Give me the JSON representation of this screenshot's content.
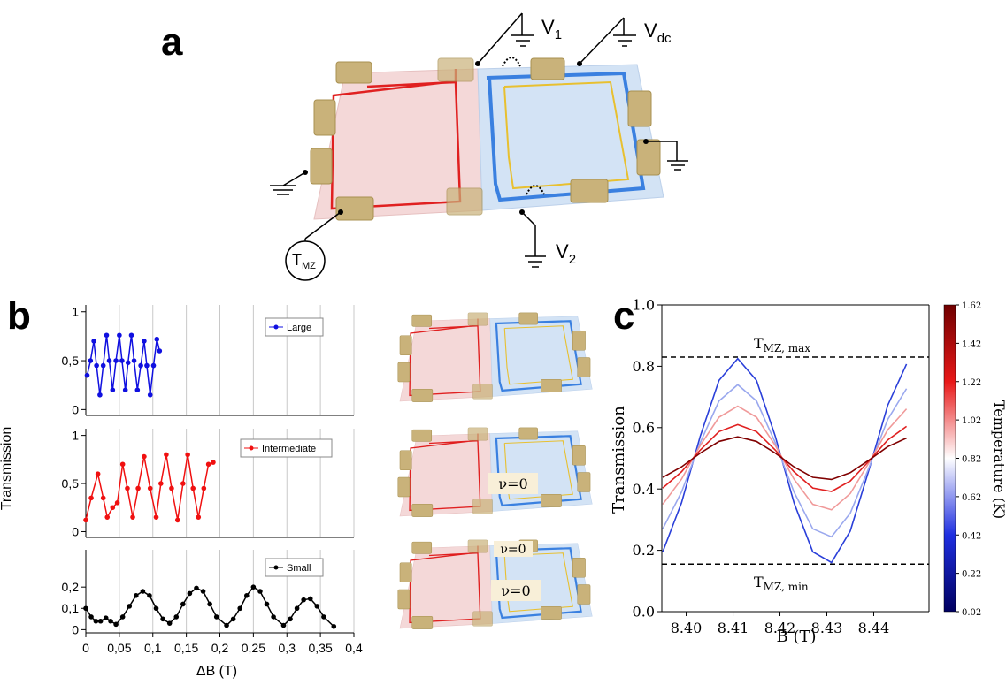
{
  "panels": {
    "a": "a",
    "b": "b",
    "c": "c"
  },
  "schematic": {
    "v1": {
      "main": "V",
      "sub": "1"
    },
    "vdc": {
      "main": "V",
      "sub": "dc"
    },
    "v2": {
      "main": "V",
      "sub": "2"
    },
    "tmz": {
      "main": "T",
      "sub": "MZ"
    },
    "nu_labels": [
      "ν=0",
      "ν=0",
      "ν=0"
    ]
  },
  "chart_data": [
    {
      "type": "line",
      "xlim": [
        0,
        0.4
      ],
      "ylim": [
        -0.06,
        1.07
      ],
      "yticks": [
        0,
        {
          "value": 0.5,
          "label": "0,5"
        },
        1
      ],
      "grid": "x",
      "x": [
        0.002,
        0.007,
        0.012,
        0.016,
        0.021,
        0.026,
        0.031,
        0.035,
        0.04,
        0.045,
        0.05,
        0.054,
        0.059,
        0.063,
        0.068,
        0.072,
        0.077,
        0.082,
        0.087,
        0.091,
        0.096,
        0.101,
        0.106,
        0.11
      ],
      "series": [
        {
          "name": "Large",
          "color": "#1010e0",
          "values": [
            0.35,
            0.5,
            0.7,
            0.45,
            0.15,
            0.45,
            0.76,
            0.5,
            0.2,
            0.5,
            0.76,
            0.5,
            0.2,
            0.48,
            0.76,
            0.5,
            0.2,
            0.45,
            0.7,
            0.45,
            0.15,
            0.45,
            0.72,
            0.6
          ]
        }
      ]
    },
    {
      "type": "line",
      "xlim": [
        0,
        0.4
      ],
      "ylim": [
        -0.06,
        1.07
      ],
      "yticks": [
        0,
        {
          "value": 0.5,
          "label": "0,5"
        },
        1
      ],
      "grid": "x",
      "ylabel": "Transmission",
      "x": [
        0,
        0.008,
        0.018,
        0.026,
        0.032,
        0.04,
        0.047,
        0.055,
        0.062,
        0.07,
        0.078,
        0.087,
        0.096,
        0.105,
        0.112,
        0.12,
        0.128,
        0.137,
        0.145,
        0.152,
        0.16,
        0.168,
        0.176,
        0.183,
        0.19
      ],
      "series": [
        {
          "name": "Intermediate",
          "color": "#f01010",
          "values": [
            0.12,
            0.35,
            0.6,
            0.35,
            0.15,
            0.25,
            0.3,
            0.7,
            0.45,
            0.15,
            0.45,
            0.78,
            0.45,
            0.15,
            0.5,
            0.8,
            0.45,
            0.12,
            0.5,
            0.8,
            0.45,
            0.15,
            0.45,
            0.7,
            0.72
          ]
        }
      ]
    },
    {
      "type": "line",
      "xlim": [
        0,
        0.4
      ],
      "ylim": [
        -0.015,
        0.375
      ],
      "grid": "x",
      "xlabel": "ΔB (T)",
      "xticks": [
        0,
        {
          "value": 0.05,
          "label": "0,05"
        },
        {
          "value": 0.1,
          "label": "0,1"
        },
        {
          "value": 0.15,
          "label": "0,15"
        },
        {
          "value": 0.2,
          "label": "0,2"
        },
        {
          "value": 0.25,
          "label": "0,25"
        },
        {
          "value": 0.3,
          "label": "0,3"
        },
        {
          "value": 0.35,
          "label": "0,35"
        },
        {
          "value": 0.4,
          "label": "0,4"
        }
      ],
      "yticks": [
        0,
        {
          "value": 0.1,
          "label": "0,1"
        },
        {
          "value": 0.2,
          "label": "0,2"
        }
      ],
      "x": [
        0,
        0.008,
        0.015,
        0.022,
        0.03,
        0.037,
        0.045,
        0.055,
        0.065,
        0.075,
        0.085,
        0.095,
        0.105,
        0.115,
        0.125,
        0.135,
        0.145,
        0.155,
        0.165,
        0.175,
        0.185,
        0.195,
        0.21,
        0.22,
        0.23,
        0.24,
        0.25,
        0.26,
        0.27,
        0.28,
        0.295,
        0.305,
        0.315,
        0.325,
        0.335,
        0.345,
        0.355,
        0.37
      ],
      "series": [
        {
          "name": "Small",
          "color": "#000000",
          "values": [
            0.1,
            0.06,
            0.04,
            0.04,
            0.055,
            0.04,
            0.025,
            0.06,
            0.11,
            0.16,
            0.18,
            0.16,
            0.1,
            0.05,
            0.03,
            0.06,
            0.12,
            0.17,
            0.195,
            0.18,
            0.12,
            0.06,
            0.02,
            0.05,
            0.1,
            0.16,
            0.2,
            0.18,
            0.12,
            0.06,
            0.02,
            0.05,
            0.1,
            0.14,
            0.145,
            0.11,
            0.06,
            0.015
          ]
        }
      ]
    },
    {
      "type": "line",
      "xlabel": "B (T)",
      "ylabel": "Transmission",
      "xlim": [
        8.3948,
        8.4518
      ],
      "ylim": [
        0,
        1
      ],
      "xticks": [
        {
          "value": 8.4,
          "label": "8.40"
        },
        8.41,
        8.42,
        8.43,
        8.44
      ],
      "yticks": [
        {
          "value": 0,
          "label": "0.0"
        },
        0.2,
        0.4,
        0.6,
        0.8,
        {
          "value": 1,
          "label": "1.0"
        }
      ],
      "x": [
        8.395,
        8.399,
        8.403,
        8.407,
        8.411,
        8.415,
        8.419,
        8.423,
        8.427,
        8.431,
        8.435,
        8.439,
        8.443,
        8.447
      ],
      "series": [
        {
          "color": "#2a3fd9",
          "values": [
            0.195,
            0.355,
            0.572,
            0.754,
            0.825,
            0.754,
            0.572,
            0.355,
            0.195,
            0.16,
            0.263,
            0.463,
            0.673,
            0.807
          ]
        },
        {
          "color": "#9aa8ee",
          "values": [
            0.27,
            0.39,
            0.551,
            0.687,
            0.74,
            0.687,
            0.551,
            0.39,
            0.27,
            0.244,
            0.321,
            0.47,
            0.627,
            0.727
          ]
        },
        {
          "color": "#f09a9a",
          "values": [
            0.35,
            0.432,
            0.542,
            0.634,
            0.67,
            0.634,
            0.542,
            0.432,
            0.35,
            0.332,
            0.385,
            0.486,
            0.593,
            0.661
          ]
        },
        {
          "color": "#e02020",
          "values": [
            0.403,
            0.456,
            0.527,
            0.587,
            0.61,
            0.587,
            0.527,
            0.456,
            0.403,
            0.392,
            0.426,
            0.491,
            0.56,
            0.604
          ]
        },
        {
          "color": "#800000",
          "values": [
            0.438,
            0.472,
            0.517,
            0.555,
            0.57,
            0.555,
            0.517,
            0.472,
            0.438,
            0.431,
            0.453,
            0.494,
            0.538,
            0.566
          ]
        }
      ],
      "hlines": [
        {
          "value": 0.83,
          "label": {
            "main": "T",
            "sub": "MZ, max"
          }
        },
        {
          "value": 0.155,
          "label": {
            "main": "T",
            "sub": "MZ, min"
          }
        }
      ],
      "colorbar": {
        "label": "Temperature (K)",
        "lim": [
          0.02,
          1.62
        ],
        "ticks": [
          0.02,
          0.22,
          0.42,
          0.62,
          0.82,
          1.02,
          1.22,
          1.42,
          1.62
        ],
        "colors": [
          "#000060",
          "#1f2fe0",
          "#ffffff",
          "#e81818",
          "#700000"
        ]
      }
    }
  ]
}
